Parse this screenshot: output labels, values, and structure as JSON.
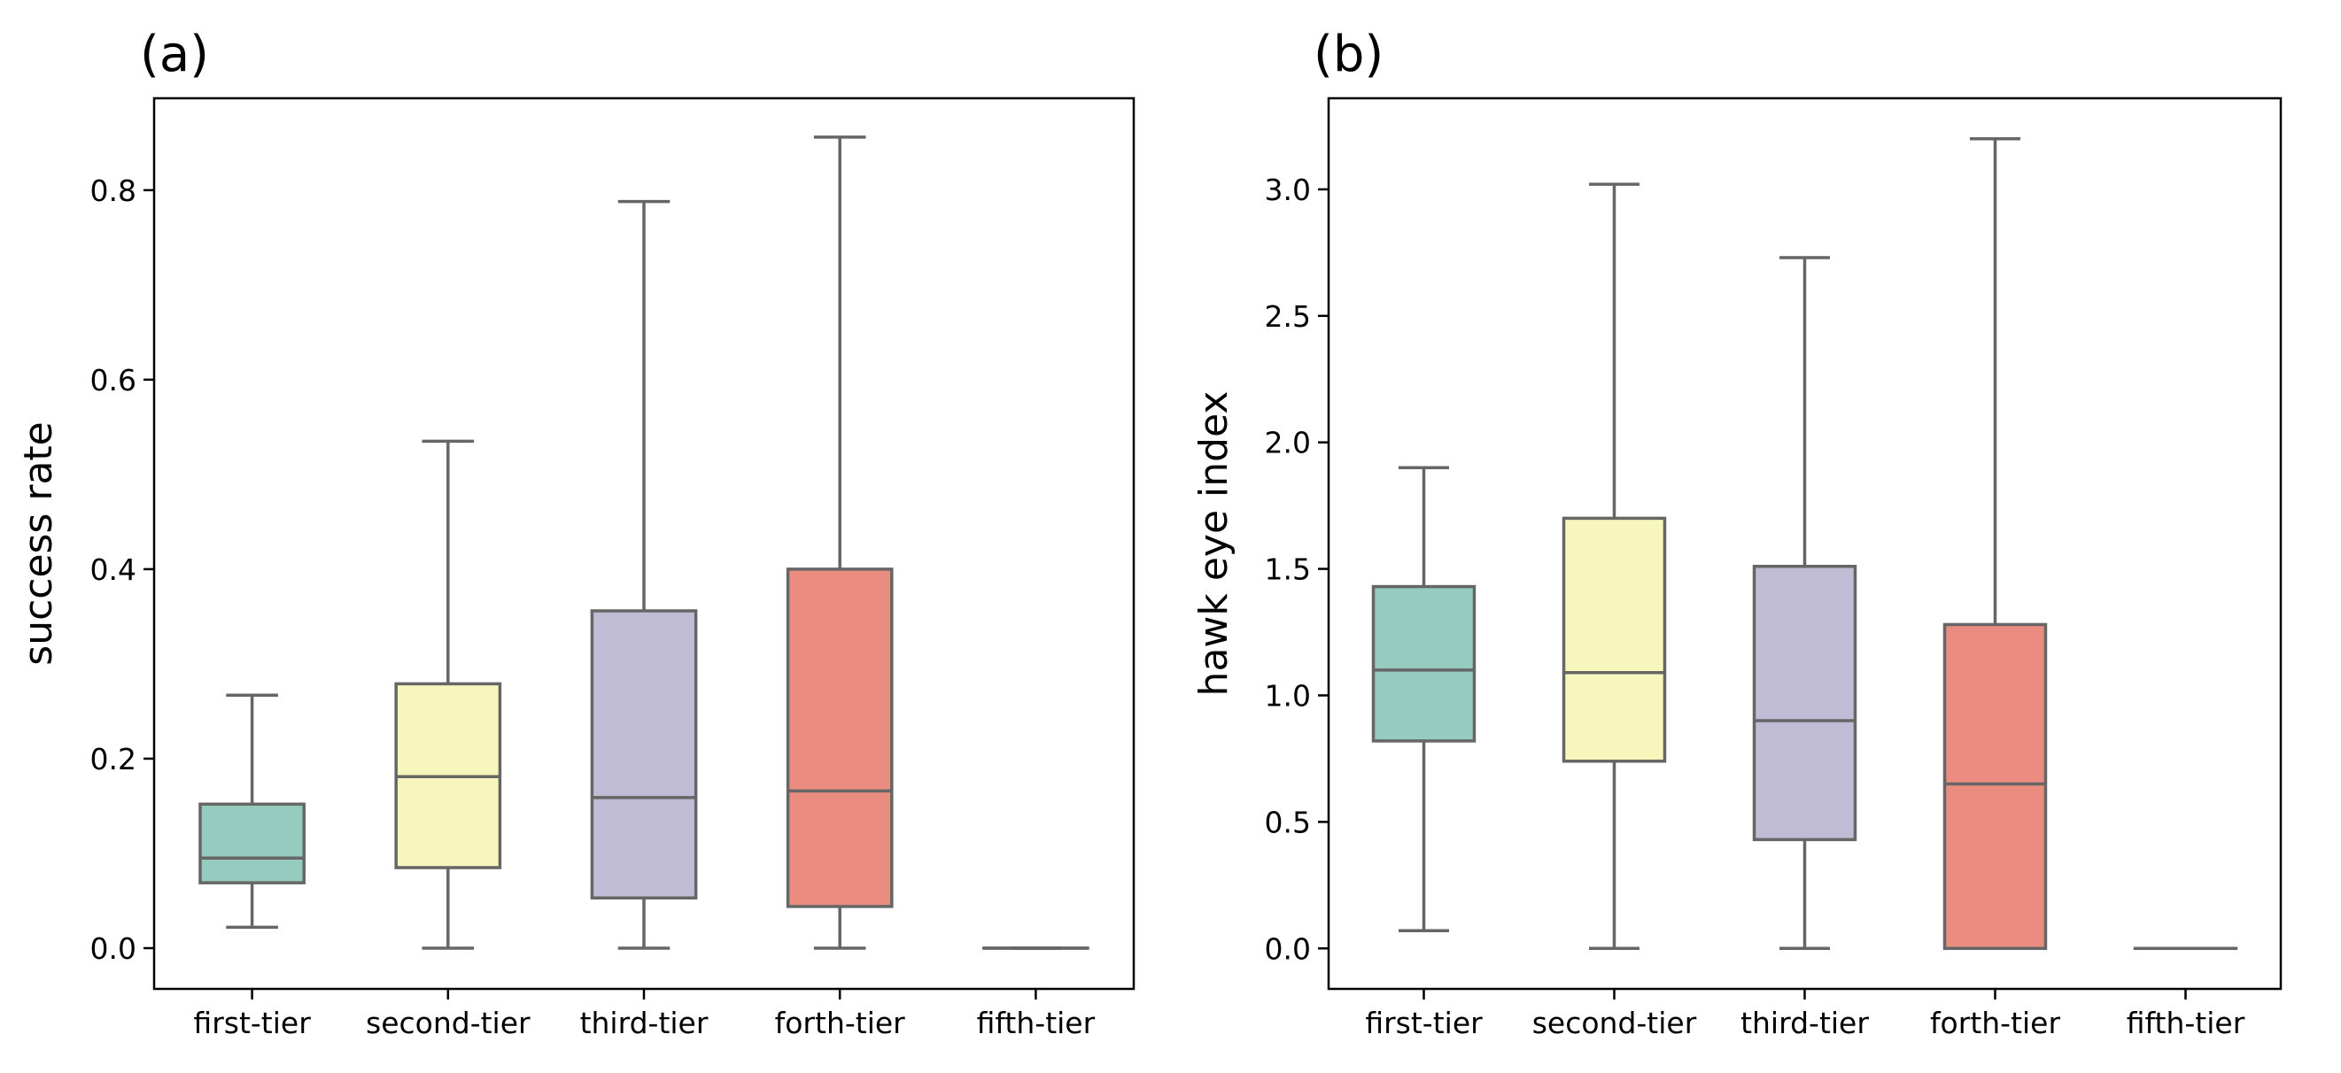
{
  "chart_data": [
    {
      "type": "box",
      "panel_label": "(a)",
      "ylabel": "success rate",
      "xlabel": "",
      "categories": [
        "first-tier",
        "second-tier",
        "third-tier",
        "forth-tier",
        "fifth-tier"
      ],
      "colors": [
        "#96cbc0",
        "#f7f6bc",
        "#c0bcd5",
        "#ea8c7f",
        "#96cbc0"
      ],
      "ylim": [
        -0.043,
        0.897
      ],
      "yticks": [
        0.0,
        0.2,
        0.4,
        0.6,
        0.8
      ],
      "ytick_labels": [
        "0.0",
        "0.2",
        "0.4",
        "0.6",
        "0.8"
      ],
      "boxes": [
        {
          "whisker_low": 0.022,
          "q1": 0.069,
          "median": 0.095,
          "q3": 0.152,
          "whisker_high": 0.267
        },
        {
          "whisker_low": 0.0,
          "q1": 0.085,
          "median": 0.181,
          "q3": 0.279,
          "whisker_high": 0.535
        },
        {
          "whisker_low": 0.0,
          "q1": 0.053,
          "median": 0.159,
          "q3": 0.356,
          "whisker_high": 0.788
        },
        {
          "whisker_low": 0.0,
          "q1": 0.044,
          "median": 0.166,
          "q3": 0.4,
          "whisker_high": 0.856
        },
        {
          "whisker_low": 0.0,
          "q1": 0.0,
          "median": 0.0,
          "q3": 0.0,
          "whisker_high": 0.0
        }
      ]
    },
    {
      "type": "box",
      "panel_label": "(b)",
      "ylabel": "hawk eye index",
      "xlabel": "",
      "categories": [
        "first-tier",
        "second-tier",
        "third-tier",
        "forth-tier",
        "fifth-tier"
      ],
      "colors": [
        "#96cbc0",
        "#f7f6bc",
        "#c0bcd5",
        "#ea8c7f",
        "#96cbc0"
      ],
      "ylim": [
        -0.16,
        3.36
      ],
      "yticks": [
        0.0,
        0.5,
        1.0,
        1.5,
        2.0,
        2.5,
        3.0
      ],
      "ytick_labels": [
        "0.0",
        "0.5",
        "1.0",
        "1.5",
        "2.0",
        "2.5",
        "3.0"
      ],
      "boxes": [
        {
          "whisker_low": 0.07,
          "q1": 0.82,
          "median": 1.1,
          "q3": 1.43,
          "whisker_high": 1.9
        },
        {
          "whisker_low": 0.0,
          "q1": 0.74,
          "median": 1.09,
          "q3": 1.7,
          "whisker_high": 3.02
        },
        {
          "whisker_low": 0.0,
          "q1": 0.43,
          "median": 0.9,
          "q3": 1.51,
          "whisker_high": 2.73
        },
        {
          "whisker_low": 0.0,
          "q1": 0.0,
          "median": 0.65,
          "q3": 1.28,
          "whisker_high": 3.2
        },
        {
          "whisker_low": 0.0,
          "q1": 0.0,
          "median": 0.0,
          "q3": 0.0,
          "whisker_high": 0.0
        }
      ]
    }
  ]
}
